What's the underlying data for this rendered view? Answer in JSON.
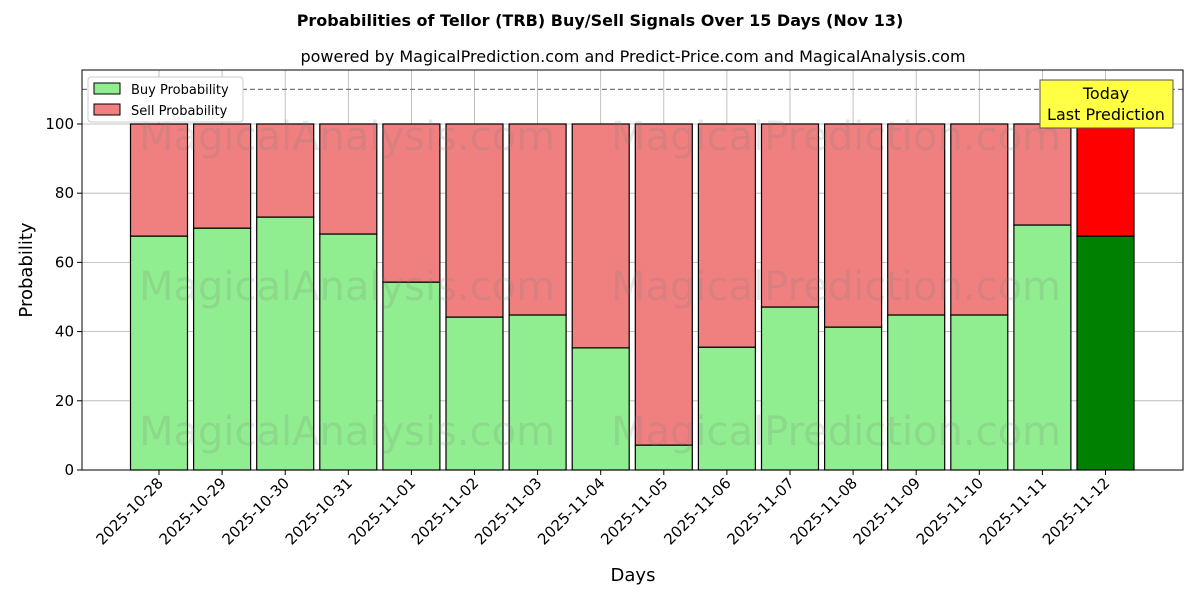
{
  "chart_data": {
    "type": "bar",
    "stacked": true,
    "title": "Probabilities of Tellor (TRB) Buy/Sell Signals Over 15 Days (Nov 13)",
    "subtitle": "powered by MagicalPrediction.com and Predict-Price.com and MagicalAnalysis.com",
    "xlabel": "Days",
    "ylabel": "Probability",
    "ylim": [
      0,
      115.6
    ],
    "yticks": [
      0,
      20,
      40,
      60,
      80,
      100
    ],
    "grid": true,
    "legend_position": "top-left",
    "reference_line": 110,
    "categories": [
      "2025-10-28",
      "2025-10-29",
      "2025-10-30",
      "2025-10-31",
      "2025-11-01",
      "2025-11-02",
      "2025-11-03",
      "2025-11-04",
      "2025-11-05",
      "2025-11-06",
      "2025-11-07",
      "2025-11-08",
      "2025-11-09",
      "2025-11-10",
      "2025-11-11",
      "2025-11-12"
    ],
    "series": [
      {
        "name": "Buy Probability",
        "color": "#90ee90",
        "highlight_color": "#008000",
        "values": [
          67.6,
          69.9,
          73.1,
          68.2,
          54.3,
          44.2,
          44.8,
          35.3,
          7.2,
          35.5,
          47.1,
          41.3,
          44.8,
          44.8,
          70.8,
          67.6
        ]
      },
      {
        "name": "Sell Probability",
        "color": "#f08080",
        "highlight_color": "#ff0000",
        "values": [
          32.4,
          30.1,
          26.9,
          31.8,
          45.7,
          55.8,
          55.2,
          64.7,
          92.8,
          64.5,
          52.9,
          58.7,
          55.2,
          55.2,
          29.2,
          32.4
        ]
      }
    ],
    "annotation": {
      "line1": "Today",
      "line2": "Last Prediction",
      "color": "#ffff44"
    },
    "watermarks": [
      "MagicalAnalysis.com",
      "MagicalPrediction.com"
    ]
  }
}
